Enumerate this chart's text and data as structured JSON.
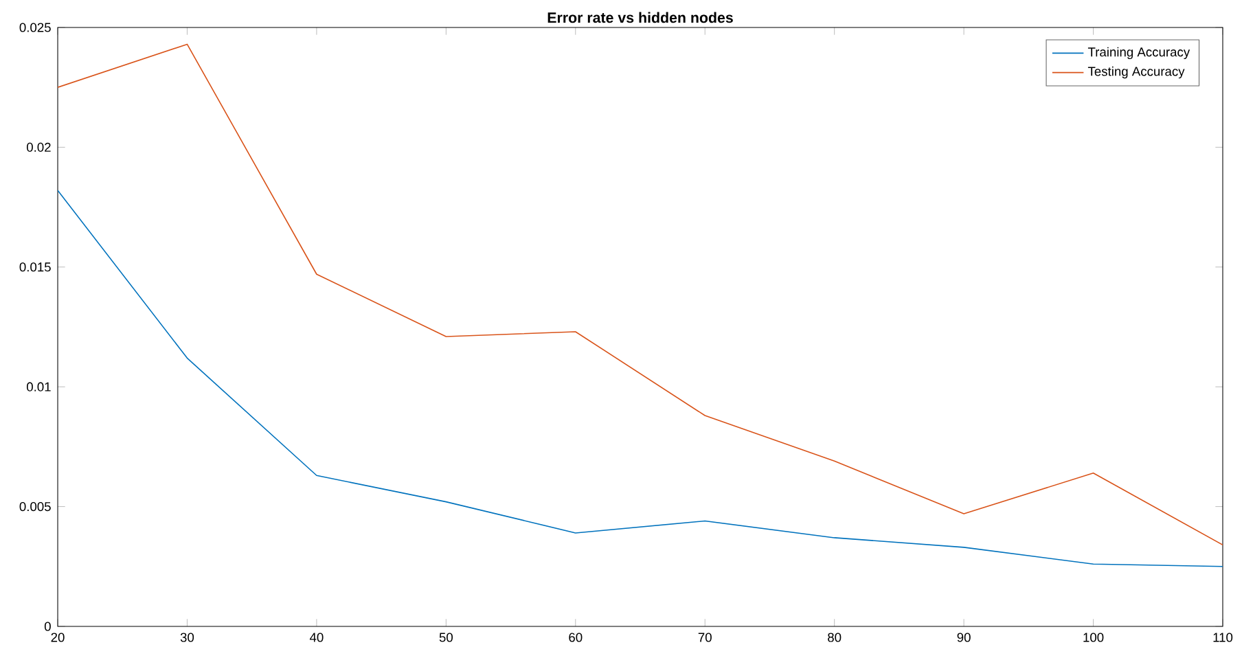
{
  "chart_data": {
    "type": "line",
    "title": "Error rate vs hidden nodes",
    "x": [
      20,
      30,
      40,
      50,
      60,
      70,
      80,
      90,
      100,
      110
    ],
    "series": [
      {
        "name": "Training Accuracy",
        "color": "#0072bd",
        "values": [
          0.0182,
          0.0112,
          0.0063,
          0.0052,
          0.0039,
          0.0044,
          0.0037,
          0.0033,
          0.0026,
          0.0025
        ]
      },
      {
        "name": "Testing Accuracy",
        "color": "#d95319",
        "values": [
          0.0225,
          0.0243,
          0.0147,
          0.0121,
          0.0123,
          0.0088,
          0.0069,
          0.0047,
          0.0064,
          0.0034
        ]
      }
    ],
    "xlim": [
      20,
      110
    ],
    "xticks": [
      20,
      30,
      40,
      50,
      60,
      70,
      80,
      90,
      100,
      110
    ],
    "ylim": [
      0,
      0.025
    ],
    "yticks": [
      0,
      0.005,
      0.01,
      0.015,
      0.02,
      0.025
    ],
    "legend": "top right",
    "marker": "none",
    "line_style": "solid",
    "grid": false
  }
}
